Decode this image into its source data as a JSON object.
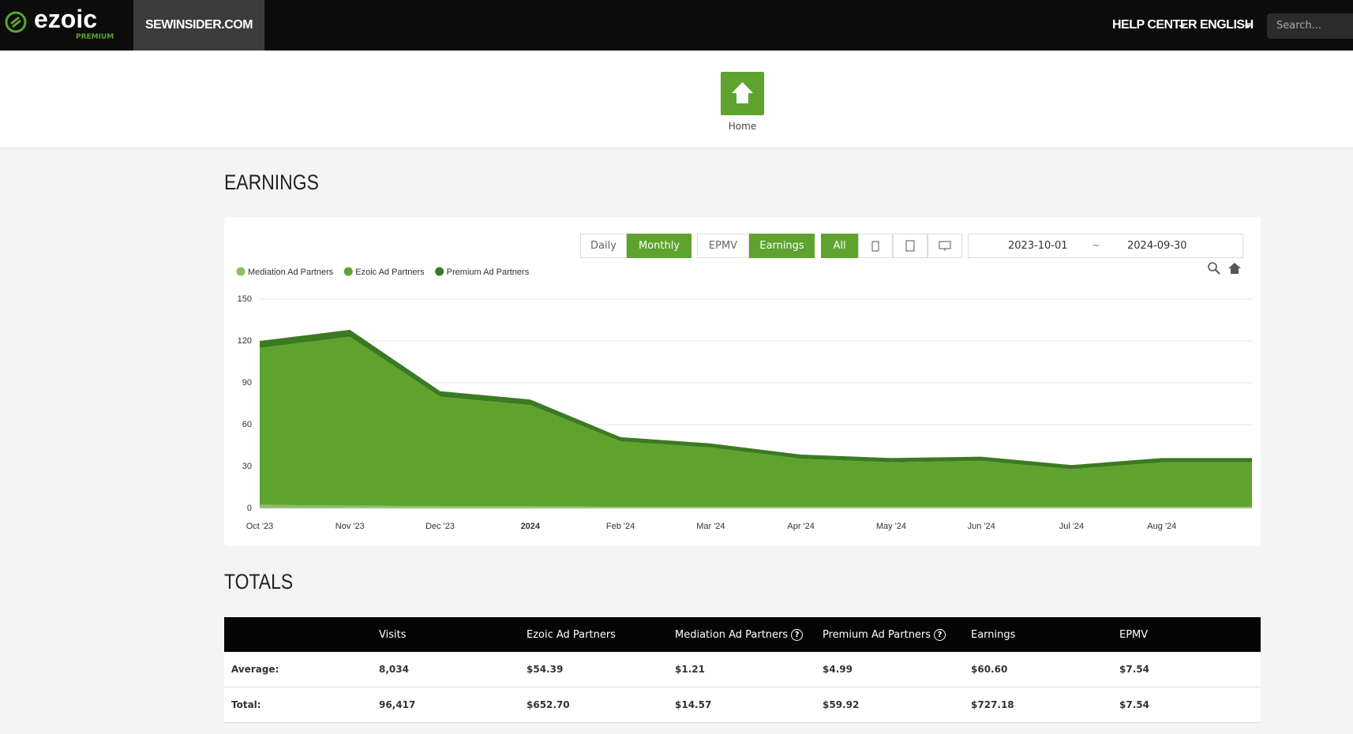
{
  "header": {
    "logo": "ezoic",
    "logo_sub": "PREMIUM",
    "site": "SEWINSIDER.COM",
    "help": "HELP CENTER",
    "lang": "ENGLISH",
    "search": "Search..."
  },
  "home": "Home",
  "earnings_title": "EARNINGS",
  "controls": {
    "period": [
      "Daily",
      "Monthly"
    ],
    "metric": [
      "EPMV",
      "Earnings"
    ],
    "device": "All",
    "date_from": "2023-10-01",
    "date_sep": "~",
    "date_to": "2024-09-30"
  },
  "chart_data": {
    "type": "area",
    "stacked": true,
    "categories": [
      "Oct '23",
      "Nov '23",
      "Dec '23",
      "2024",
      "Feb '24",
      "Mar '24",
      "Apr '24",
      "May '24",
      "Jun '24",
      "Jul '24",
      "Aug '24",
      null
    ],
    "series": [
      {
        "name": "Mediation Ad Partners",
        "color": "#8cc063",
        "values": [
          2.5,
          2,
          1.5,
          1.5,
          1,
          1,
          1,
          1,
          1,
          1,
          1,
          1
        ]
      },
      {
        "name": "Ezoic Ad Partners",
        "color": "#5ea32e",
        "values": [
          112.5,
          121,
          78.5,
          72.5,
          47,
          42.5,
          34.5,
          32,
          33,
          27,
          32,
          32
        ]
      },
      {
        "name": "Premium Ad Partners",
        "color": "#3c7a22",
        "values": [
          5,
          5,
          4,
          4,
          3,
          3,
          3,
          3,
          3,
          3,
          3,
          3
        ]
      }
    ],
    "ylim": [
      0,
      150
    ],
    "yticks": [
      0,
      30,
      60,
      90,
      120,
      150
    ],
    "grid": true
  },
  "totals": {
    "title": "TOTALS",
    "columns": [
      "Visits",
      "Ezoic Ad Partners",
      "Mediation Ad Partners",
      "Premium Ad Partners",
      "Earnings",
      "EPMV"
    ],
    "rows": [
      {
        "label": "Average:",
        "cells": [
          "8,034",
          "$54.39",
          "$1.21",
          "$4.99",
          "$60.60",
          "$7.54"
        ]
      },
      {
        "label": "Total:",
        "cells": [
          "96,417",
          "$652.70",
          "$14.57",
          "$59.92",
          "$727.18",
          "$7.54"
        ]
      }
    ]
  }
}
